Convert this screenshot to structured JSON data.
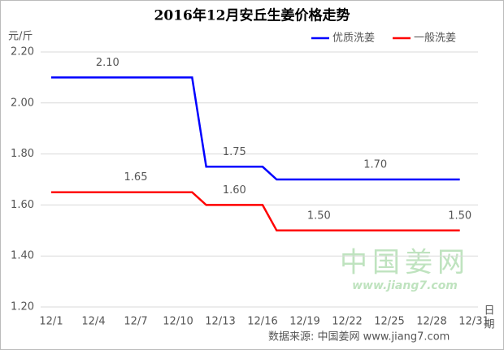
{
  "chart_data": {
    "type": "line",
    "title": "2016年12月安丘生姜价格走势",
    "y_label": "元/斤",
    "x_label": "日期",
    "source": "数据来源: 中国姜网 www.jiang7.com",
    "watermark": {
      "brand": "中国姜网",
      "url": "www.jiang7.com"
    },
    "categories": [
      "12/1",
      null,
      null,
      "12/4",
      null,
      null,
      "12/7",
      null,
      null,
      "12/10",
      null,
      null,
      "12/13",
      null,
      null,
      "12/16",
      null,
      null,
      "12/19",
      null,
      null,
      "12/22",
      null,
      null,
      "12/25",
      null,
      null,
      "12/28",
      null,
      null,
      "12/31"
    ],
    "series": [
      {
        "name": "优质洗姜",
        "color": "#0000ff",
        "values": [
          2.1,
          2.1,
          2.1,
          2.1,
          2.1,
          2.1,
          2.1,
          2.1,
          2.1,
          2.1,
          2.1,
          1.75,
          1.75,
          1.75,
          1.75,
          1.75,
          1.7,
          1.7,
          1.7,
          1.7,
          1.7,
          1.7,
          1.7,
          1.7,
          1.7,
          1.7,
          1.7,
          1.7,
          1.7,
          1.7,
          null
        ],
        "value_labels": [
          null,
          null,
          null,
          null,
          "2.10",
          null,
          null,
          null,
          null,
          null,
          null,
          null,
          null,
          "1.75",
          null,
          null,
          null,
          null,
          null,
          null,
          null,
          null,
          null,
          "1.70",
          null,
          null,
          null,
          null,
          null,
          null,
          null
        ]
      },
      {
        "name": "一般洗姜",
        "color": "#ff0000",
        "values": [
          1.65,
          1.65,
          1.65,
          1.65,
          1.65,
          1.65,
          1.65,
          1.65,
          1.65,
          1.65,
          1.65,
          1.6,
          1.6,
          1.6,
          1.6,
          1.6,
          1.5,
          1.5,
          1.5,
          1.5,
          1.5,
          1.5,
          1.5,
          1.5,
          1.5,
          1.5,
          1.5,
          1.5,
          1.5,
          1.5,
          null
        ],
        "value_labels": [
          null,
          null,
          null,
          null,
          null,
          null,
          "1.65",
          null,
          null,
          null,
          null,
          null,
          null,
          "1.60",
          null,
          null,
          null,
          null,
          null,
          "1.50",
          null,
          null,
          null,
          null,
          null,
          null,
          null,
          null,
          null,
          "1.50",
          null
        ]
      }
    ],
    "ylim": [
      1.2,
      2.2
    ],
    "yticks": [
      {
        "value": 1.2,
        "label": "1.20"
      },
      {
        "value": 1.4,
        "label": "1.40"
      },
      {
        "value": 1.6,
        "label": "1.60"
      },
      {
        "value": 1.8,
        "label": "1.80"
      },
      {
        "value": 2.0,
        "label": "2.00"
      },
      {
        "value": 2.2,
        "label": "2.20"
      }
    ],
    "grid": true,
    "legend": "top-right"
  }
}
